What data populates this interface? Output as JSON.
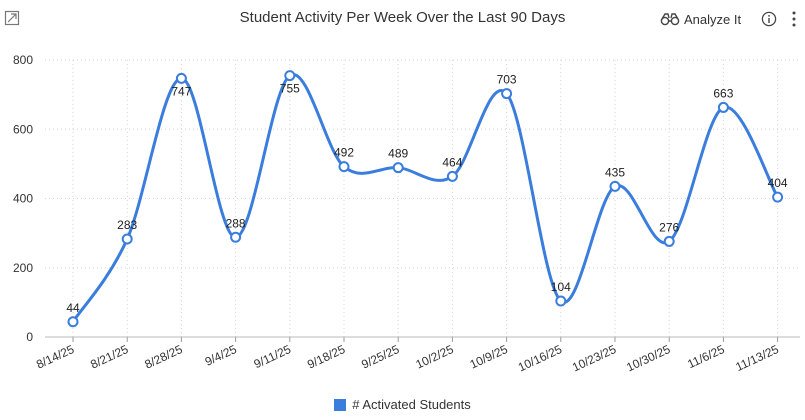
{
  "header": {
    "title": "Student Activity Per Week Over the Last 90 Days",
    "analyze_label": "Analyze It",
    "expand_icon": "expand-icon",
    "analyze_icon": "binoculars-icon",
    "info_icon": "info-icon",
    "more_icon": "more-vertical-icon"
  },
  "colors": {
    "series": "#3a7ddc",
    "grid": "#d6d6d6",
    "axis": "#333333"
  },
  "chart_data": {
    "type": "line",
    "title": "Student Activity Per Week Over the Last 90 Days",
    "categories": [
      "8/14/25",
      "8/21/25",
      "8/28/25",
      "9/4/25",
      "9/11/25",
      "9/18/25",
      "9/25/25",
      "10/2/25",
      "10/9/25",
      "10/16/25",
      "10/23/25",
      "10/30/25",
      "11/6/25",
      "11/13/25"
    ],
    "series": [
      {
        "name": "# Activated Students",
        "values": [
          44,
          283,
          747,
          288,
          755,
          492,
          489,
          464,
          703,
          104,
          435,
          276,
          663,
          404
        ]
      }
    ],
    "ylim": [
      0,
      800
    ],
    "yticks": [
      0,
      200,
      400,
      600,
      800
    ],
    "grid": true,
    "legend": "bottom-center",
    "data_labels": true,
    "smooth": true
  }
}
